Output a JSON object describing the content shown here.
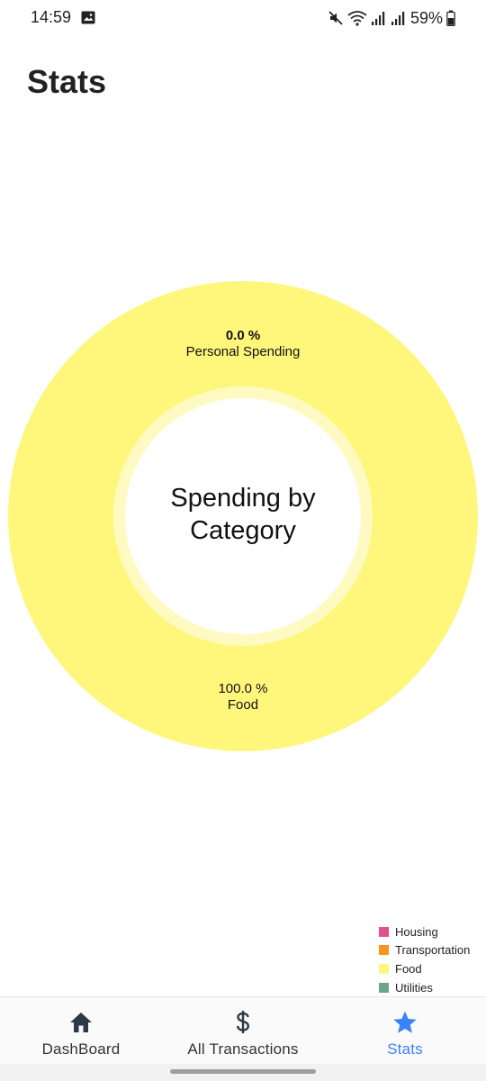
{
  "status_bar": {
    "time": "14:59",
    "battery_text": "59%",
    "icons": [
      "image-icon",
      "mute-icon",
      "wifi-icon",
      "signal-icon",
      "signal-icon",
      "battery-icon"
    ]
  },
  "page": {
    "title": "Stats"
  },
  "chart_data": {
    "type": "pie",
    "center_title": "Spending by Category",
    "slices": [
      {
        "label": "Food",
        "value": 100.0,
        "percent_label": "100.0 %",
        "color": "#fff67c"
      },
      {
        "label": "Housing",
        "value": 0.0,
        "color": "#e0508a"
      },
      {
        "label": "Transportation",
        "value": 0.0,
        "color": "#f7941d"
      },
      {
        "label": "Utilities",
        "value": 0.0,
        "color": "#6fa586"
      }
    ],
    "zero_label": {
      "percent": "0.0 %",
      "text": "Personal Spending"
    },
    "legend": [
      {
        "label": "Housing",
        "color": "#e0508a"
      },
      {
        "label": "Transportation",
        "color": "#f7941d"
      },
      {
        "label": "Food",
        "color": "#fff67c"
      },
      {
        "label": "Utilities",
        "color": "#6fa586"
      }
    ],
    "legend_position": "bottom-right"
  },
  "bottom_nav": {
    "items": [
      {
        "label": "DashBoard",
        "icon": "home-icon",
        "active": false
      },
      {
        "label": "All Transactions",
        "icon": "dollar-icon",
        "active": false
      },
      {
        "label": "Stats",
        "icon": "star-icon",
        "active": true
      }
    ],
    "active_color": "#3b82f6"
  }
}
